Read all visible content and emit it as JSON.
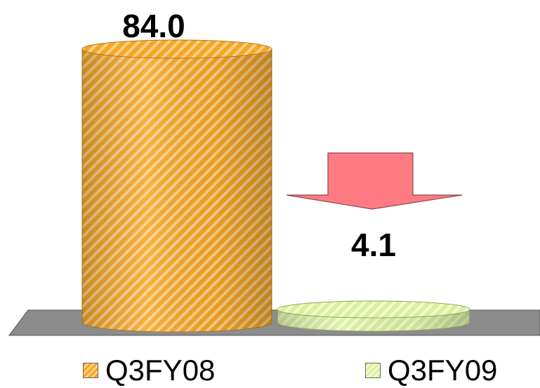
{
  "chart_data": {
    "type": "bar",
    "categories": [
      "Q3FY08",
      "Q3FY09"
    ],
    "series": [
      {
        "name": "Q3FY08",
        "values": [
          84.0,
          null
        ]
      },
      {
        "name": "Q3FY09",
        "values": [
          null,
          4.1
        ]
      }
    ],
    "values": [
      84.0,
      4.1
    ],
    "data_labels": [
      "84.0",
      "4.1"
    ],
    "bar_shape": "cylinder",
    "grid": false,
    "legend_position": "bottom",
    "annotation": "down-arrow"
  },
  "legend": {
    "items": [
      {
        "label": "Q3FY08"
      },
      {
        "label": "Q3FY09"
      }
    ]
  },
  "colors": {
    "series_1": "#F5A623",
    "series_1_stripe": "#FFD08A",
    "series_2": "#D9F0A0",
    "series_2_stripe": "#F4FCCB",
    "floor": "#8C8C8C",
    "arrow": "#FF7B84"
  }
}
